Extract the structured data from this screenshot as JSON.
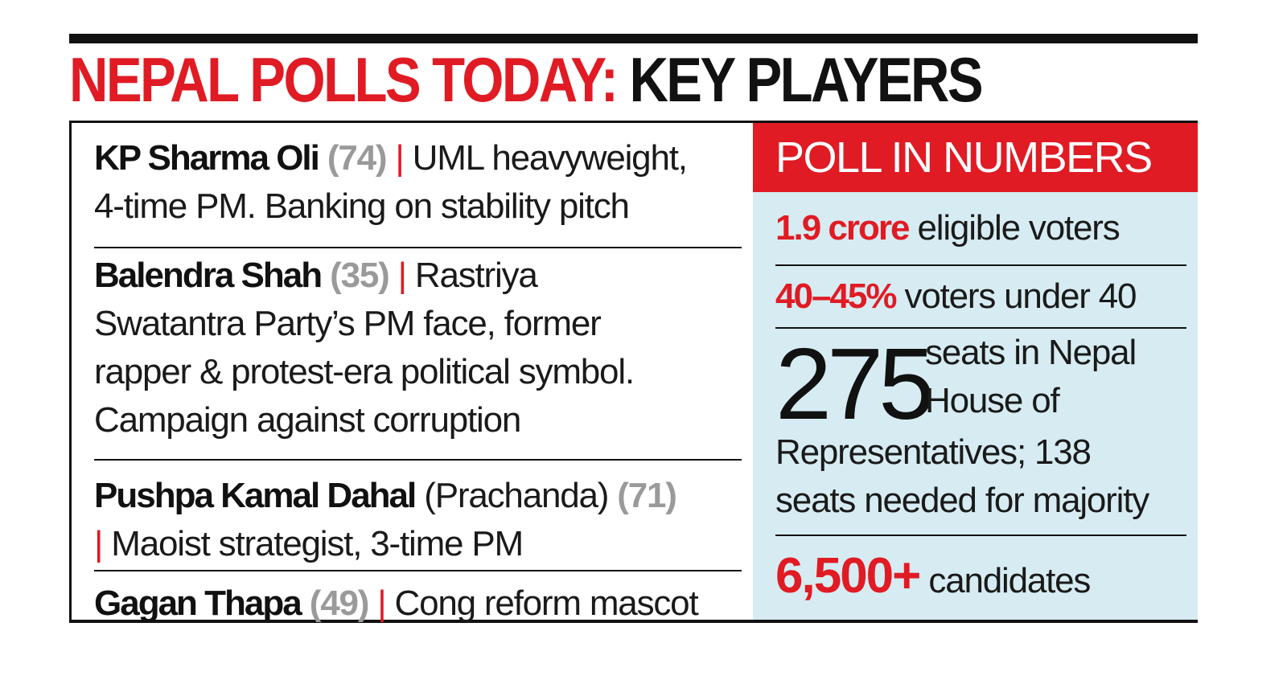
{
  "headline": {
    "red": "NEPAL POLLS TODAY:",
    "black": "KEY PLAYERS"
  },
  "players": [
    {
      "name": "KP Sharma Oli",
      "age": "(74)",
      "separator": "|",
      "desc_line1": "UML heavyweight,",
      "desc_line2": "4-time PM. Banking on stability pitch"
    },
    {
      "name": "Balendra Shah",
      "age": "(35)",
      "separator": "|",
      "desc_line1": "Rastriya",
      "desc_line2": "Swatantra Party’s PM face, former",
      "desc_line3": "rapper & protest-era political symbol.",
      "desc_line4": "Campaign against corruption"
    },
    {
      "name": "Pushpa Kamal Dahal",
      "alias": "(Prachanda)",
      "age": "(71)",
      "separator": "|",
      "desc_line1": "Maoist strategist, 3-time PM"
    },
    {
      "name": "Gagan Thapa",
      "age": "(49)",
      "separator": "|",
      "desc_line1": "Cong reform mascot"
    }
  ],
  "numbers": {
    "header": "POLL IN NUMBERS",
    "stats": [
      {
        "highlight": "1.9 crore",
        "text": "eligible voters"
      },
      {
        "highlight": "40–45%",
        "text": "voters under 40"
      },
      {
        "big": "275",
        "line1": "seats in Nepal",
        "line2": "House of",
        "line3": "Representatives; 138",
        "line4": "seats needed for majority"
      },
      {
        "highlight": "6,500+",
        "text": "candidates"
      }
    ]
  },
  "colors": {
    "accent_red": "#e01b24",
    "panel_blue": "#d6ecf2",
    "age_gray": "#9a9a9a",
    "ink": "#111111"
  }
}
